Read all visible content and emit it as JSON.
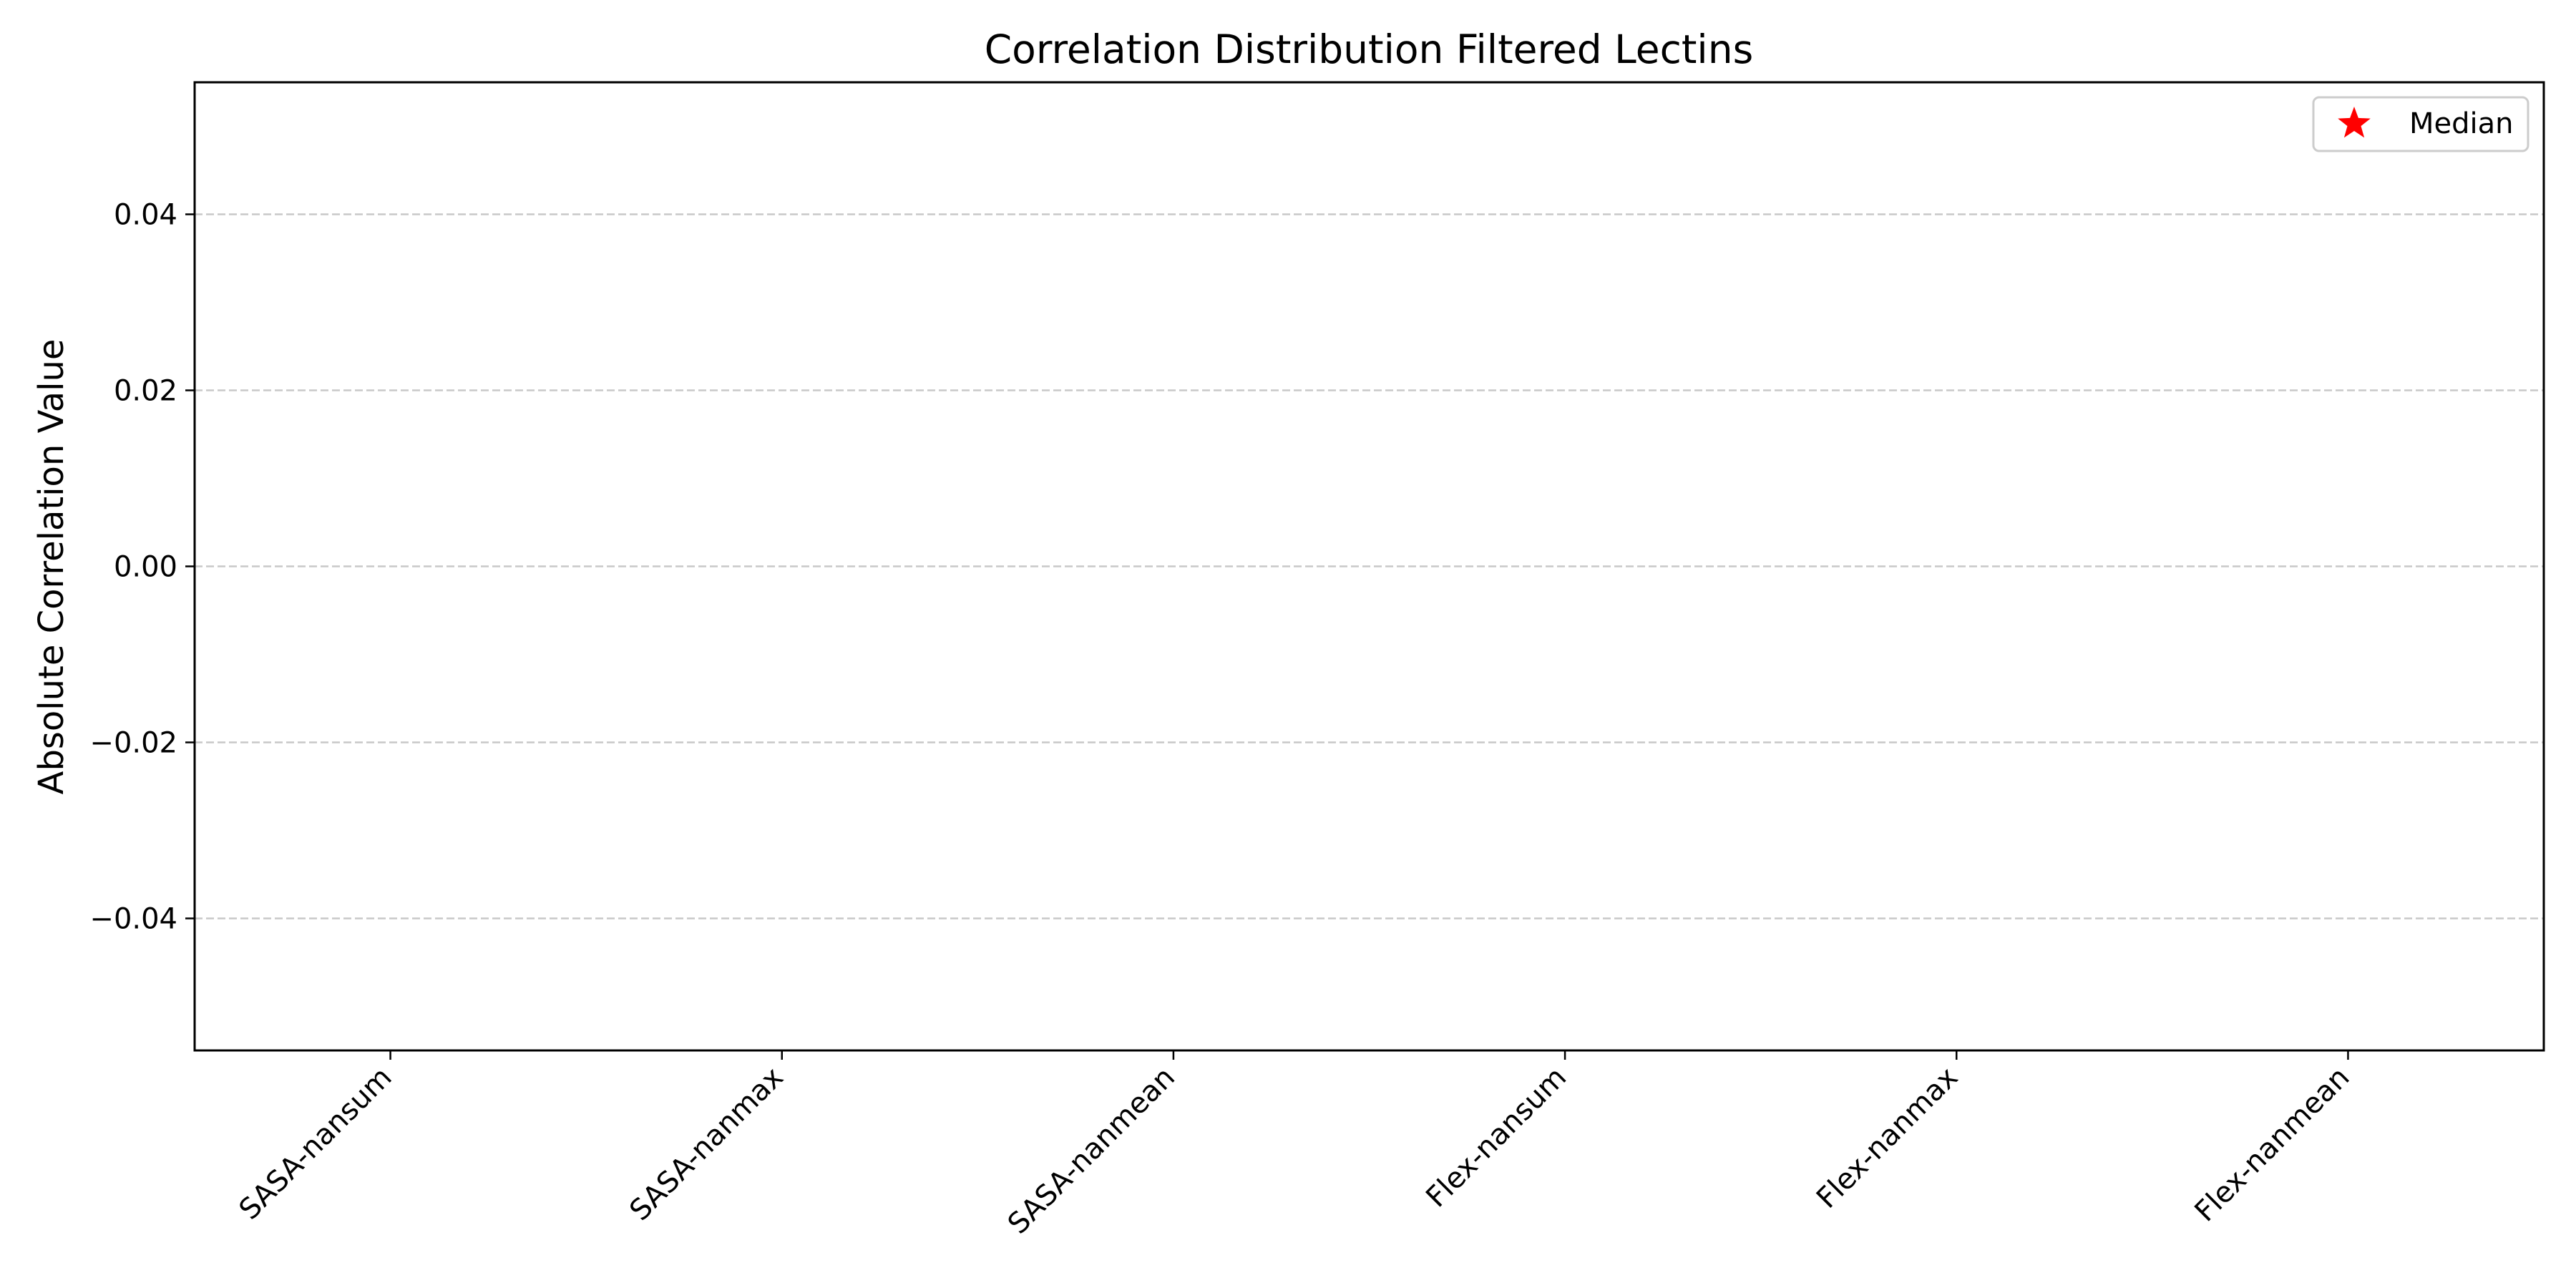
{
  "chart_data": {
    "type": "scatter",
    "title": "Correlation Distribution Filtered Lectins",
    "xlabel": "",
    "ylabel": "Absolute Correlation Value",
    "categories": [
      "SASA-nansum",
      "SASA-nanmax",
      "SASA-nanmean",
      "Flex-nansum",
      "Flex-nanmax",
      "Flex-nanmean"
    ],
    "ylim": [
      -0.055,
      0.055
    ],
    "yticks": [
      -0.04,
      -0.02,
      0.0,
      0.02,
      0.04
    ],
    "ytick_labels": [
      "−0.04",
      "−0.02",
      "0.00",
      "0.02",
      "0.04"
    ],
    "grid": {
      "y": true,
      "x": false,
      "style": "dashed",
      "color": "#c8c8c8"
    },
    "series": [
      {
        "name": "Median",
        "marker": "star",
        "color": "#ff0000",
        "values": [
          null,
          null,
          null,
          null,
          null,
          null
        ]
      }
    ],
    "legend": {
      "position": "top-right",
      "entries": [
        "Median"
      ]
    }
  }
}
